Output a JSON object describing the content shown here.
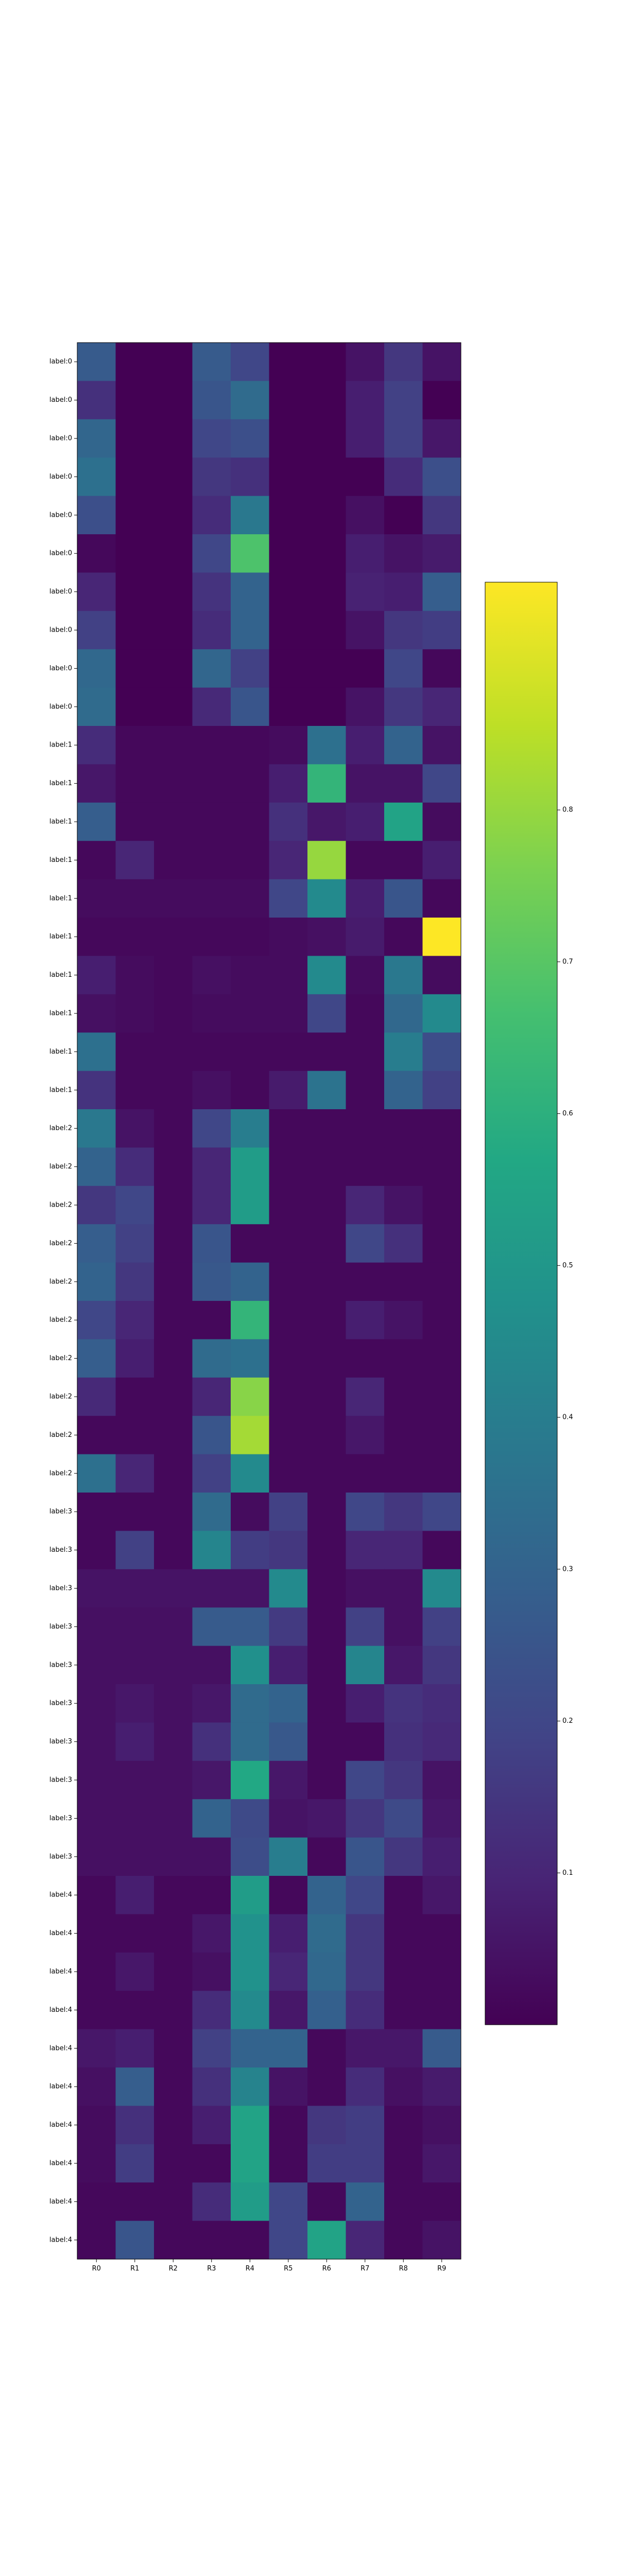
{
  "chart_data": {
    "type": "heatmap",
    "title": "",
    "xlabel": "",
    "ylabel": "",
    "x": [
      "R0",
      "R1",
      "R2",
      "R3",
      "R4",
      "R5",
      "R6",
      "R7",
      "R8",
      "R9"
    ],
    "y": [
      "label:0",
      "label:0",
      "label:0",
      "label:0",
      "label:0",
      "label:0",
      "label:0",
      "label:0",
      "label:0",
      "label:0",
      "label:1",
      "label:1",
      "label:1",
      "label:1",
      "label:1",
      "label:1",
      "label:1",
      "label:1",
      "label:1",
      "label:1",
      "label:2",
      "label:2",
      "label:2",
      "label:2",
      "label:2",
      "label:2",
      "label:2",
      "label:2",
      "label:2",
      "label:2",
      "label:3",
      "label:3",
      "label:3",
      "label:3",
      "label:3",
      "label:3",
      "label:3",
      "label:3",
      "label:3",
      "label:3",
      "label:4",
      "label:4",
      "label:4",
      "label:4",
      "label:4",
      "label:4",
      "label:4",
      "label:4",
      "label:4",
      "label:4"
    ],
    "values": [
      [
        0.27,
        0.0,
        0.0,
        0.27,
        0.2,
        0.0,
        0.0,
        0.05,
        0.15,
        0.05
      ],
      [
        0.13,
        0.0,
        0.0,
        0.25,
        0.33,
        0.0,
        0.0,
        0.08,
        0.18,
        0.0
      ],
      [
        0.31,
        0.0,
        0.0,
        0.2,
        0.23,
        0.0,
        0.0,
        0.08,
        0.18,
        0.06
      ],
      [
        0.35,
        0.0,
        0.0,
        0.15,
        0.13,
        0.0,
        0.0,
        0.0,
        0.12,
        0.23
      ],
      [
        0.23,
        0.0,
        0.0,
        0.12,
        0.38,
        0.0,
        0.0,
        0.04,
        0.0,
        0.15
      ],
      [
        0.02,
        0.0,
        0.0,
        0.2,
        0.68,
        0.0,
        0.0,
        0.08,
        0.05,
        0.07
      ],
      [
        0.1,
        0.0,
        0.0,
        0.14,
        0.3,
        0.0,
        0.0,
        0.09,
        0.08,
        0.28
      ],
      [
        0.18,
        0.0,
        0.0,
        0.12,
        0.3,
        0.0,
        0.0,
        0.05,
        0.15,
        0.17
      ],
      [
        0.32,
        0.0,
        0.0,
        0.31,
        0.18,
        0.0,
        0.0,
        0.0,
        0.2,
        0.02
      ],
      [
        0.33,
        0.0,
        0.0,
        0.11,
        0.25,
        0.0,
        0.0,
        0.05,
        0.15,
        0.1
      ],
      [
        0.12,
        0.02,
        0.02,
        0.02,
        0.02,
        0.03,
        0.35,
        0.08,
        0.3,
        0.05
      ],
      [
        0.06,
        0.02,
        0.02,
        0.02,
        0.02,
        0.08,
        0.62,
        0.05,
        0.05,
        0.2
      ],
      [
        0.28,
        0.02,
        0.02,
        0.02,
        0.02,
        0.13,
        0.06,
        0.08,
        0.55,
        0.03
      ],
      [
        0.02,
        0.1,
        0.02,
        0.02,
        0.02,
        0.1,
        0.8,
        0.02,
        0.02,
        0.08
      ],
      [
        0.03,
        0.03,
        0.03,
        0.03,
        0.03,
        0.2,
        0.45,
        0.08,
        0.25,
        0.02
      ],
      [
        0.02,
        0.02,
        0.02,
        0.02,
        0.02,
        0.03,
        0.04,
        0.07,
        0.02,
        0.95
      ],
      [
        0.08,
        0.03,
        0.02,
        0.04,
        0.03,
        0.03,
        0.45,
        0.03,
        0.38,
        0.03
      ],
      [
        0.04,
        0.03,
        0.02,
        0.03,
        0.03,
        0.03,
        0.2,
        0.02,
        0.32,
        0.45
      ],
      [
        0.35,
        0.02,
        0.02,
        0.02,
        0.02,
        0.02,
        0.02,
        0.02,
        0.4,
        0.22
      ],
      [
        0.14,
        0.02,
        0.02,
        0.04,
        0.02,
        0.07,
        0.36,
        0.02,
        0.3,
        0.18
      ],
      [
        0.38,
        0.05,
        0.02,
        0.2,
        0.4,
        0.02,
        0.02,
        0.02,
        0.02,
        0.02
      ],
      [
        0.3,
        0.12,
        0.02,
        0.1,
        0.52,
        0.02,
        0.02,
        0.02,
        0.02,
        0.02
      ],
      [
        0.15,
        0.2,
        0.02,
        0.1,
        0.52,
        0.02,
        0.02,
        0.1,
        0.05,
        0.02
      ],
      [
        0.28,
        0.18,
        0.02,
        0.25,
        0.02,
        0.02,
        0.02,
        0.2,
        0.13,
        0.02
      ],
      [
        0.3,
        0.15,
        0.02,
        0.26,
        0.3,
        0.02,
        0.02,
        0.02,
        0.02,
        0.02
      ],
      [
        0.2,
        0.1,
        0.02,
        0.02,
        0.62,
        0.02,
        0.02,
        0.08,
        0.05,
        0.02
      ],
      [
        0.28,
        0.08,
        0.02,
        0.33,
        0.35,
        0.02,
        0.02,
        0.02,
        0.02,
        0.02
      ],
      [
        0.11,
        0.02,
        0.02,
        0.1,
        0.78,
        0.02,
        0.02,
        0.1,
        0.02,
        0.02
      ],
      [
        0.02,
        0.02,
        0.02,
        0.25,
        0.82,
        0.02,
        0.02,
        0.06,
        0.02,
        0.02
      ],
      [
        0.35,
        0.1,
        0.02,
        0.18,
        0.45,
        0.02,
        0.02,
        0.02,
        0.02,
        0.02
      ],
      [
        0.02,
        0.02,
        0.02,
        0.33,
        0.03,
        0.18,
        0.02,
        0.2,
        0.15,
        0.2
      ],
      [
        0.02,
        0.18,
        0.02,
        0.43,
        0.17,
        0.15,
        0.02,
        0.1,
        0.1,
        0.02
      ],
      [
        0.05,
        0.05,
        0.05,
        0.05,
        0.05,
        0.45,
        0.02,
        0.04,
        0.04,
        0.45
      ],
      [
        0.04,
        0.04,
        0.04,
        0.27,
        0.27,
        0.16,
        0.02,
        0.18,
        0.04,
        0.18
      ],
      [
        0.04,
        0.04,
        0.04,
        0.04,
        0.47,
        0.08,
        0.02,
        0.43,
        0.06,
        0.15
      ],
      [
        0.04,
        0.06,
        0.04,
        0.06,
        0.33,
        0.3,
        0.02,
        0.08,
        0.14,
        0.12
      ],
      [
        0.04,
        0.08,
        0.04,
        0.13,
        0.33,
        0.26,
        0.02,
        0.02,
        0.13,
        0.11
      ],
      [
        0.04,
        0.04,
        0.04,
        0.06,
        0.57,
        0.06,
        0.02,
        0.2,
        0.15,
        0.05
      ],
      [
        0.04,
        0.04,
        0.04,
        0.3,
        0.21,
        0.05,
        0.06,
        0.15,
        0.21,
        0.06
      ],
      [
        0.04,
        0.04,
        0.04,
        0.04,
        0.22,
        0.4,
        0.02,
        0.25,
        0.15,
        0.08
      ],
      [
        0.02,
        0.08,
        0.02,
        0.02,
        0.52,
        0.02,
        0.3,
        0.2,
        0.02,
        0.06
      ],
      [
        0.02,
        0.02,
        0.02,
        0.06,
        0.48,
        0.08,
        0.33,
        0.15,
        0.02,
        0.02
      ],
      [
        0.02,
        0.06,
        0.02,
        0.04,
        0.48,
        0.1,
        0.32,
        0.15,
        0.02,
        0.02
      ],
      [
        0.02,
        0.02,
        0.02,
        0.12,
        0.45,
        0.06,
        0.29,
        0.12,
        0.02,
        0.02
      ],
      [
        0.06,
        0.08,
        0.02,
        0.18,
        0.3,
        0.3,
        0.02,
        0.06,
        0.06,
        0.27
      ],
      [
        0.04,
        0.28,
        0.02,
        0.13,
        0.42,
        0.05,
        0.02,
        0.12,
        0.04,
        0.07
      ],
      [
        0.03,
        0.13,
        0.02,
        0.08,
        0.55,
        0.02,
        0.15,
        0.17,
        0.02,
        0.04
      ],
      [
        0.03,
        0.17,
        0.02,
        0.02,
        0.55,
        0.02,
        0.17,
        0.17,
        0.02,
        0.06
      ],
      [
        0.02,
        0.02,
        0.02,
        0.12,
        0.52,
        0.2,
        0.02,
        0.3,
        0.02,
        0.02
      ],
      [
        0.02,
        0.25,
        0.02,
        0.02,
        0.02,
        0.2,
        0.55,
        0.1,
        0.02,
        0.05
      ]
    ],
    "colormap": "viridis",
    "vmin": 0.0,
    "vmax": 0.95,
    "colorbar_ticks": [
      "0.1",
      "0.2",
      "0.3",
      "0.4",
      "0.5",
      "0.6",
      "0.7",
      "0.8"
    ],
    "colorbar_tick_values": [
      0.1,
      0.2,
      0.3,
      0.4,
      0.5,
      0.6,
      0.7,
      0.8
    ],
    "grid": false
  }
}
